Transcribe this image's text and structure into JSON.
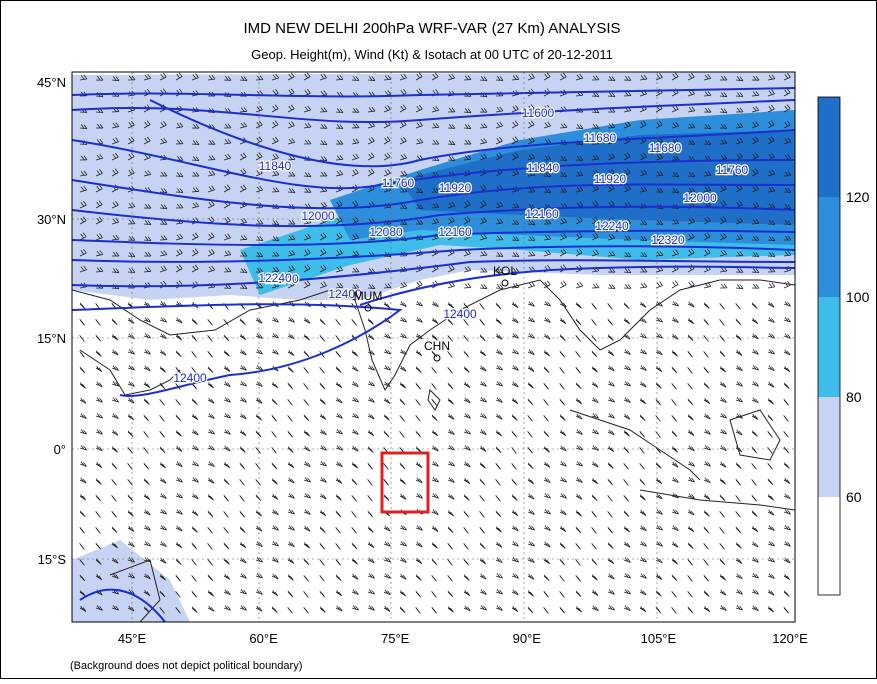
{
  "header": {
    "title": "IMD NEW DELHI 200hPa WRF-VAR (27 Km) ANALYSIS",
    "subtitle": "Geop. Height(m), Wind (Kt) & Isotach  at 00 UTC of 20-12-2011"
  },
  "axes": {
    "latitudes": [
      "45°N",
      "30°N",
      "15°N",
      "0°",
      "15°S"
    ],
    "longitudes": [
      "45°E",
      "60°E",
      "75°E",
      "90°E",
      "105°E",
      "120°E"
    ]
  },
  "contour_labels": [
    "11600",
    "11680",
    "11680",
    "11760",
    "11840",
    "11840",
    "11920",
    "11920",
    "12000",
    "12000",
    "12080",
    "12160",
    "12160",
    "12240",
    "12240",
    "12320",
    "12400",
    "12400",
    "12400",
    "12240",
    "11760"
  ],
  "cities": [
    "MUM",
    "KOL",
    "CHN"
  ],
  "colorbar": {
    "labels": [
      "120",
      "100",
      "80",
      "60"
    ]
  },
  "footnote": "(Background does not depict political boundary)"
}
